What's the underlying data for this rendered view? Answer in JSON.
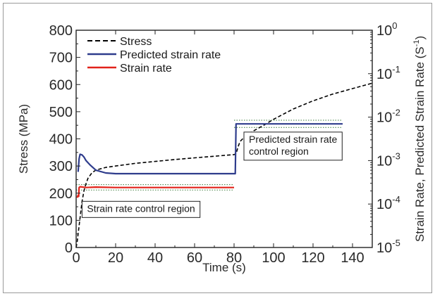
{
  "chart_data": {
    "type": "line",
    "xlabel": "Time (s)",
    "ylabel_left": "Stress (MPa)",
    "ylabel_right_parts": [
      "Strain Rate, Predicted Strain Rate (S",
      "-1",
      ")"
    ],
    "xlim": [
      0,
      150
    ],
    "ylim_left": [
      0,
      800
    ],
    "ylim_right_log": [
      -5,
      0
    ],
    "x_ticks": [
      "0",
      "20",
      "40",
      "60",
      "80",
      "100",
      "120",
      "140"
    ],
    "x_tick_values": [
      0,
      20,
      40,
      60,
      80,
      100,
      120,
      140
    ],
    "y_left_ticks": [
      "0",
      "100",
      "200",
      "300",
      "400",
      "500",
      "600",
      "700",
      "800"
    ],
    "y_left_tick_values": [
      0,
      100,
      200,
      300,
      400,
      500,
      600,
      700,
      800
    ],
    "y_right_ticks": [
      {
        "base": "10",
        "exp": "-5"
      },
      {
        "base": "10",
        "exp": "-4"
      },
      {
        "base": "10",
        "exp": "-3"
      },
      {
        "base": "10",
        "exp": "-2"
      },
      {
        "base": "10",
        "exp": "-1"
      },
      {
        "base": "10",
        "exp": "0"
      }
    ],
    "y_right_tick_values": [
      -5,
      -4,
      -3,
      -2,
      -1,
      0
    ],
    "legend_position": "top-left",
    "series": [
      {
        "name": "Stress",
        "axis": "left",
        "color": "#000000",
        "style": "dashed",
        "x": [
          0,
          0.5,
          1,
          2,
          3,
          4,
          5,
          6,
          8,
          10,
          15,
          20,
          30,
          40,
          50,
          60,
          70,
          80,
          81,
          82,
          83,
          85,
          90,
          95,
          100,
          110,
          120,
          130,
          140,
          150
        ],
        "y": [
          0,
          20,
          50,
          110,
          170,
          210,
          235,
          255,
          275,
          285,
          295,
          300,
          310,
          317,
          324,
          330,
          336,
          342,
          345,
          370,
          390,
          405,
          430,
          450,
          472,
          510,
          540,
          565,
          585,
          605
        ]
      },
      {
        "name": "Predicted strain rate",
        "axis": "right",
        "color": "#2e3c8c",
        "style": "solid",
        "x": [
          1,
          1.5,
          2,
          3,
          4,
          5,
          7,
          10,
          15,
          20,
          40,
          60,
          80,
          80.6,
          81,
          90,
          100,
          120,
          135
        ],
        "y": [
          0.00055,
          0.0011,
          0.0014,
          0.00135,
          0.0012,
          0.001,
          0.0008,
          0.0006,
          0.00052,
          0.0005,
          0.0005,
          0.0005,
          0.0005,
          0.0005,
          0.007,
          0.007,
          0.007,
          0.007,
          0.007
        ]
      },
      {
        "name": "Strain rate",
        "axis": "right",
        "color": "#e2231a",
        "style": "solid",
        "x": [
          0.5,
          1,
          1.3,
          1.5,
          2,
          5,
          10,
          20,
          40,
          60,
          80
        ],
        "y": [
          0.00014,
          0.00016,
          0.00015,
          0.00024,
          0.00025,
          0.00024,
          0.000245,
          0.00024,
          0.00024,
          0.00024,
          0.00024
        ]
      }
    ],
    "reference_lines": [
      {
        "axis": "right",
        "y": 0.00028,
        "x_range": [
          0,
          80
        ]
      },
      {
        "axis": "right",
        "y": 0.00021,
        "x_range": [
          0,
          80
        ]
      },
      {
        "axis": "right",
        "y": 0.0085,
        "x_range": [
          80,
          135
        ]
      },
      {
        "axis": "right",
        "y": 0.0058,
        "x_range": [
          80,
          135
        ]
      }
    ],
    "annotations": [
      {
        "text_lines": [
          "Strain rate control region"
        ],
        "x": 3,
        "y": 170
      },
      {
        "text_lines": [
          "Predicted strain rate",
          "control region"
        ],
        "x": 85,
        "y": 425
      }
    ]
  }
}
